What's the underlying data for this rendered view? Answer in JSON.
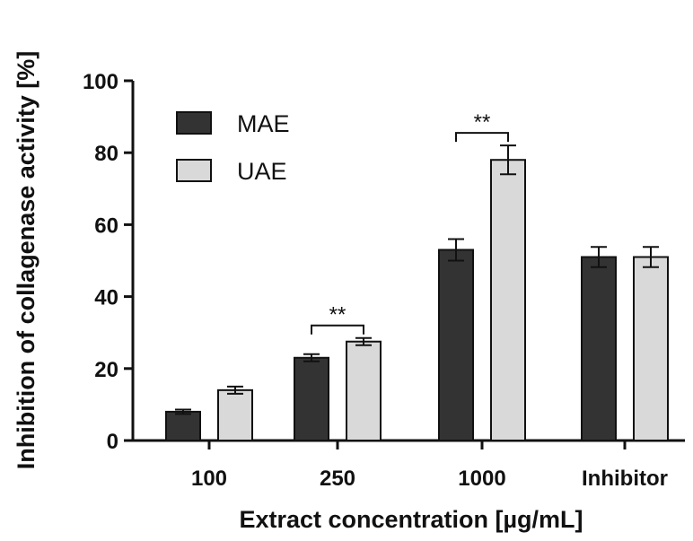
{
  "chart_data": {
    "type": "bar",
    "title": "",
    "xlabel": "Extract concentration [µg/mL]",
    "ylabel": "Inhibition of collagenase activity [%]",
    "ylim": [
      0,
      100
    ],
    "yticks": [
      0,
      20,
      40,
      60,
      80,
      100
    ],
    "categories": [
      "100",
      "250",
      "1000",
      "Inhibitor"
    ],
    "series": [
      {
        "name": "MAE",
        "color": "#333333",
        "values": [
          8,
          23,
          53,
          51
        ],
        "errors": [
          0.6,
          1.0,
          3.0,
          2.8
        ]
      },
      {
        "name": "UAE",
        "color": "#d9d9d9",
        "values": [
          14,
          27.5,
          78,
          51
        ],
        "errors": [
          1.0,
          1.0,
          4.0,
          2.8
        ]
      }
    ],
    "legend": {
      "position": "top-left"
    },
    "annotations": [
      {
        "category": "250",
        "label": "**"
      },
      {
        "category": "1000",
        "label": "**"
      }
    ]
  }
}
